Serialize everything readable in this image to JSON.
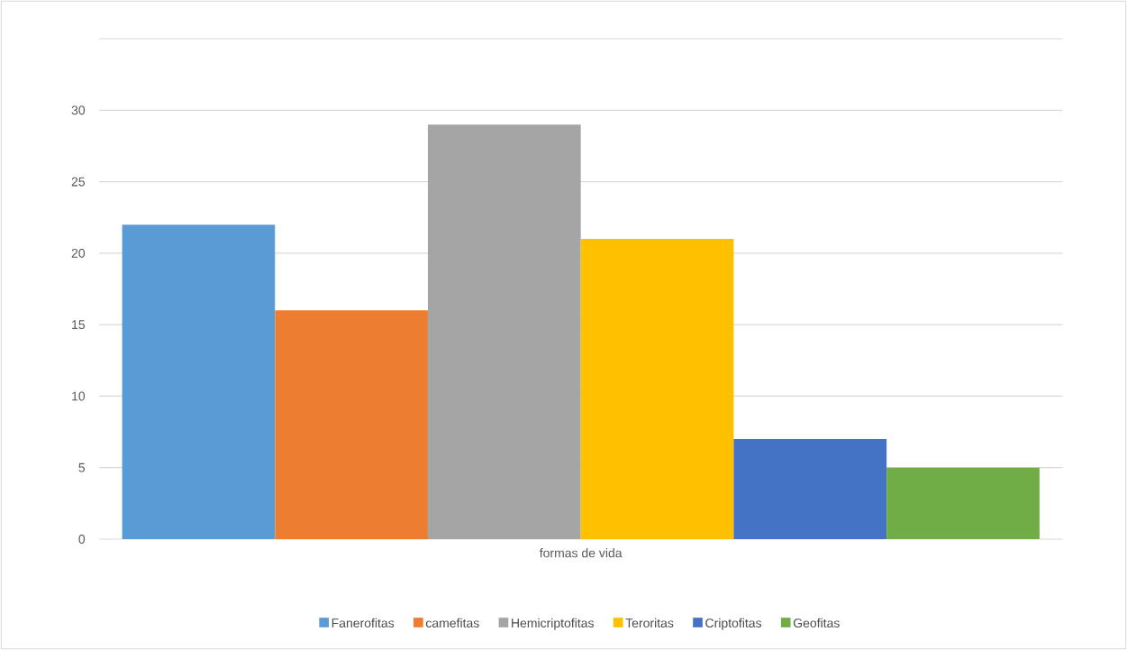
{
  "chart_data": {
    "type": "bar",
    "categories": [
      "formas de vida"
    ],
    "series": [
      {
        "name": "Fanerofitas",
        "color": "#5b9bd5",
        "values": [
          22
        ]
      },
      {
        "name": "camefitas",
        "color": "#ed7d31",
        "values": [
          16
        ]
      },
      {
        "name": "Hemicriptofitas",
        "color": "#a5a5a5",
        "values": [
          29
        ]
      },
      {
        "name": "Teroritas",
        "color": "#ffc000",
        "values": [
          21
        ]
      },
      {
        "name": "Criptofitas",
        "color": "#4472c4",
        "values": [
          7
        ]
      },
      {
        "name": "Geofitas",
        "color": "#70ad47",
        "values": [
          5
        ]
      }
    ],
    "ylim": [
      0,
      35
    ],
    "yticks": [
      0,
      5,
      10,
      15,
      20,
      25,
      30,
      {
        "value": 35,
        "label": null
      }
    ],
    "grid": "y",
    "legend": "bottom"
  }
}
